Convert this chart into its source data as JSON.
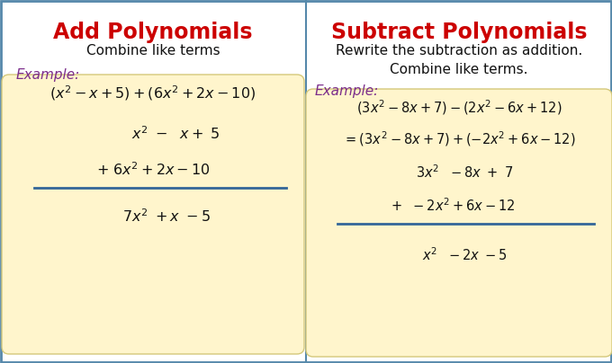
{
  "title_left": "Add Polynomials",
  "title_right": "Subtract Polynomials",
  "title_color": "#CC0000",
  "title_fontsize": 17,
  "subtitle_left": "Combine like terms",
  "subtitle_right": "Rewrite the subtraction as addition.\nCombine like terms.",
  "subtitle_color": "#111111",
  "subtitle_fontsize": 11,
  "example_label": "Example:",
  "example_color": "#7B2D8B",
  "example_fontsize": 11,
  "box_facecolor": "#FFF5CC",
  "box_edgecolor": "#D4C87A",
  "math_color": "#111111",
  "math_fontsize": 12,
  "line_color": "#336699",
  "background_color": "#FFFFFF",
  "border_color": "#5588AA",
  "divider_color": "#5588AA"
}
